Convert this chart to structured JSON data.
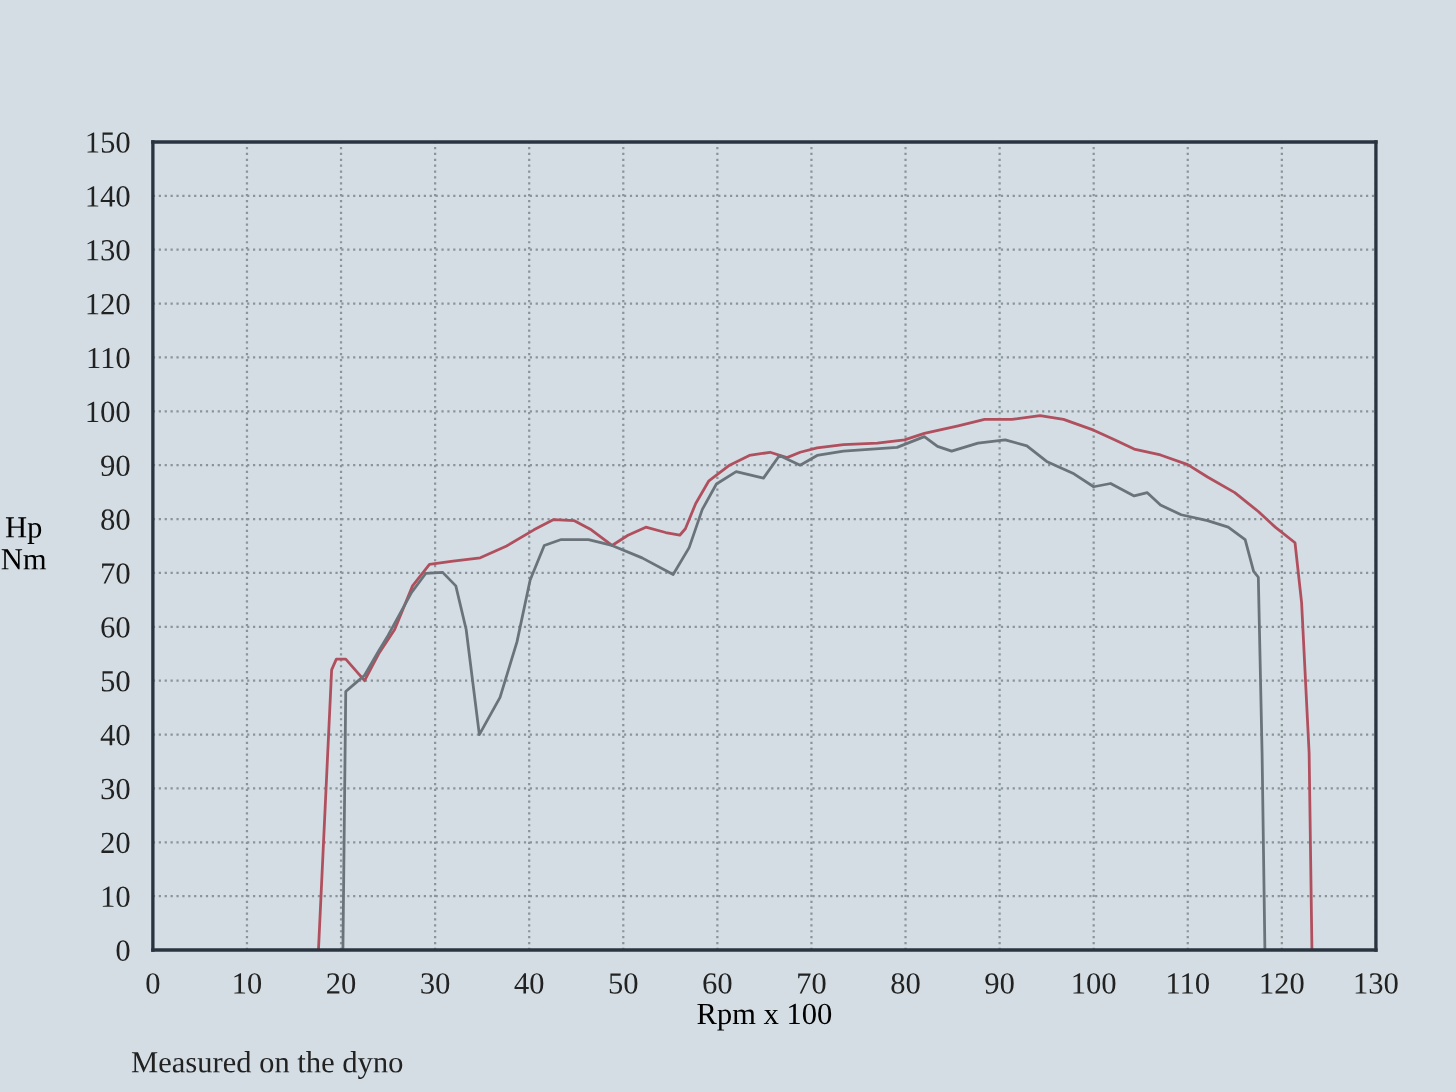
{
  "chart_data": {
    "type": "line",
    "xlabel": "Rpm x 100",
    "ylabel": "Hp\nNm",
    "annotations": [
      "Measured on the dyno"
    ],
    "xlim": [
      0,
      130
    ],
    "ylim": [
      0,
      150
    ],
    "xticks": [
      0,
      10,
      20,
      30,
      40,
      50,
      60,
      70,
      80,
      90,
      100,
      110,
      120,
      130
    ],
    "yticks": [
      0,
      10,
      20,
      30,
      40,
      50,
      60,
      70,
      80,
      90,
      100,
      110,
      120,
      130,
      140,
      150
    ],
    "grid": true,
    "legend": false,
    "marker": "none",
    "line_style": "solid",
    "series": [
      {
        "color": "#b0505e",
        "x": [
          17.6,
          19.0,
          19.5,
          20.5,
          21.5,
          22.5,
          24.0,
          25.7,
          27.6,
          29.4,
          31.9,
          34.8,
          37.6,
          40.5,
          42.6,
          44.8,
          46.6,
          48.8,
          50.5,
          52.4,
          54.5,
          56.0,
          56.6,
          57.7,
          59.1,
          61.3,
          63.4,
          65.6,
          67.4,
          68.8,
          70.6,
          73.4,
          77.0,
          79.9,
          82.0,
          85.6,
          88.4,
          91.3,
          94.3,
          96.8,
          100.0,
          102.1,
          104.3,
          107.1,
          110.0,
          112.1,
          115.0,
          117.5,
          119.3,
          121.4,
          122.1,
          122.9,
          123.2
        ],
        "values": [
          0,
          52,
          54,
          54,
          52,
          50,
          55,
          59.5,
          67.6,
          71.6,
          72.2,
          72.8,
          75,
          78,
          79.9,
          79.7,
          78,
          75.1,
          77,
          78.5,
          77.5,
          77,
          78.2,
          82.9,
          87.1,
          90,
          91.8,
          92.4,
          91.4,
          92.4,
          93.2,
          93.8,
          94.1,
          94.7,
          95.9,
          97.3,
          98.5,
          98.5,
          99.2,
          98.5,
          96.5,
          94.8,
          93,
          91.9,
          90.1,
          87.8,
          84.9,
          81.4,
          78.5,
          75.6,
          64.5,
          36.6,
          0
        ]
      },
      {
        "color": "#6b737a",
        "x": [
          20.2,
          20.5,
          21.5,
          22.5,
          24.0,
          25.0,
          27.5,
          29.0,
          30.8,
          32.2,
          33.3,
          34.7,
          36.9,
          38.7,
          40.1,
          41.6,
          43.4,
          46.3,
          48.8,
          52.0,
          55.3,
          57.0,
          58.4,
          59.9,
          62.0,
          64.9,
          66.6,
          68.8,
          70.6,
          73.4,
          79.1,
          82.0,
          83.4,
          84.9,
          87.7,
          90.6,
          92.9,
          95.0,
          97.9,
          100.0,
          101.8,
          104.3,
          105.7,
          107.1,
          109.3,
          112.1,
          114.3,
          116.1,
          117.0,
          117.5,
          117.9,
          118.2
        ],
        "values": [
          0,
          48,
          49.5,
          51,
          55.5,
          58.4,
          66.4,
          69.9,
          70.1,
          67.6,
          59.5,
          40,
          46.9,
          57.2,
          68.7,
          75.1,
          76.2,
          76.2,
          75.1,
          72.8,
          69.7,
          74.7,
          81.8,
          86.5,
          88.8,
          87.6,
          91.8,
          90,
          91.8,
          92.6,
          93.3,
          95.3,
          93.5,
          92.6,
          94.1,
          94.7,
          93.6,
          90.7,
          88.4,
          86,
          86.6,
          84.3,
          84.9,
          82.6,
          80.8,
          79.7,
          78.5,
          76.2,
          70.3,
          69.2,
          36.6,
          0
        ]
      }
    ]
  }
}
